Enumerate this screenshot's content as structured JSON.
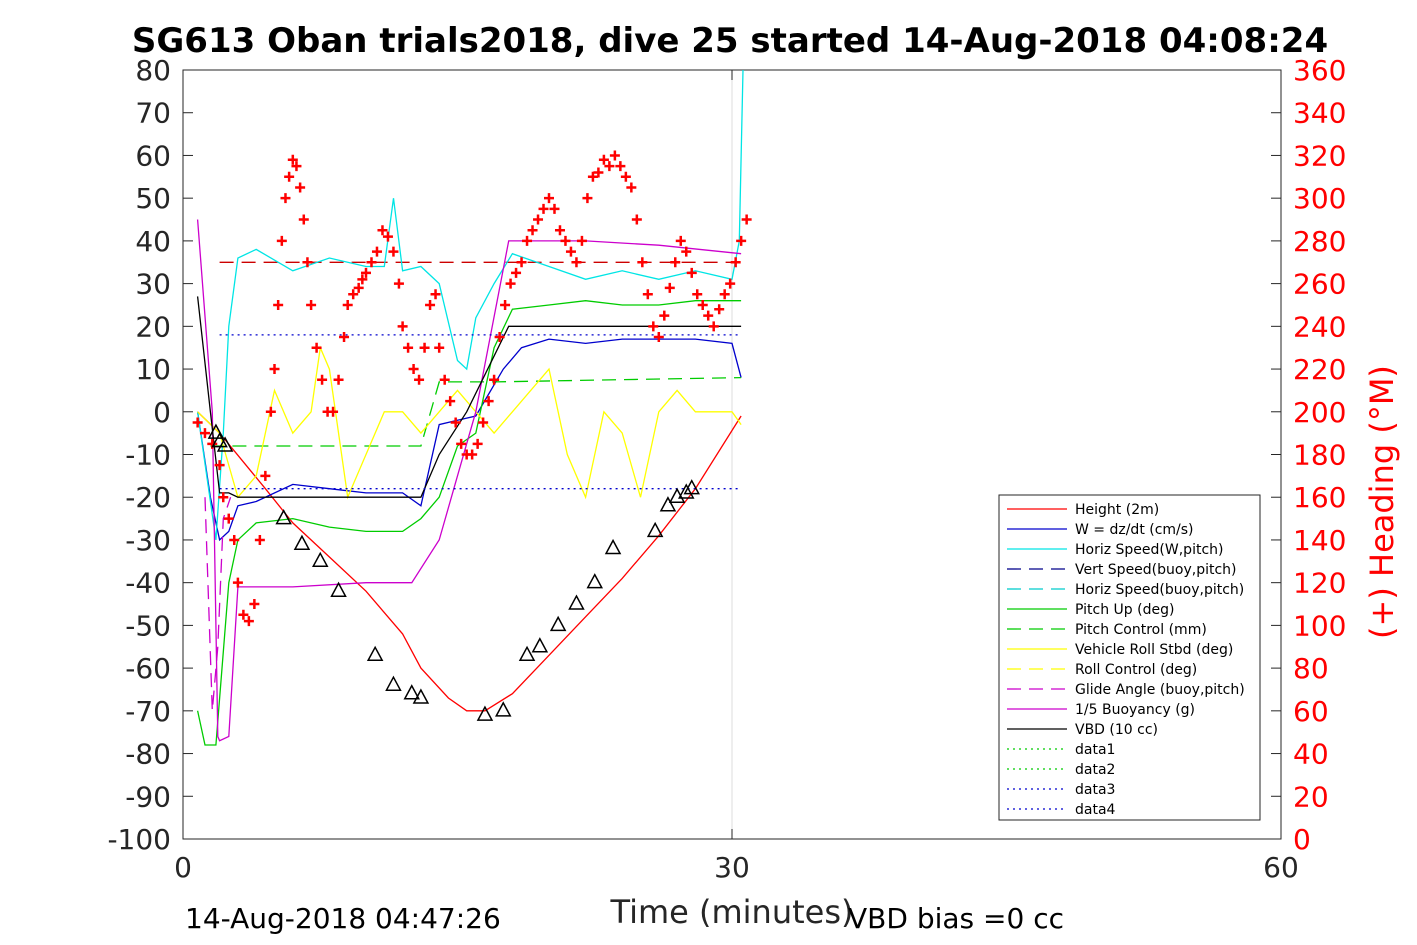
{
  "title": "SG613 Oban trials2018, dive 25 started 14-Aug-2018 04:08:24",
  "footer_left": "14-Aug-2018 04:47:26",
  "footer_right": "VBD bias =0 cc",
  "chart_data": {
    "type": "line",
    "xlabel": "Time (minutes)",
    "ylabel_right": "(+) Heading (°M)",
    "xlim": [
      0,
      60
    ],
    "ylim": [
      -100,
      80
    ],
    "ylim_right": [
      0,
      360
    ],
    "xticks": [
      "0",
      "30",
      "60"
    ],
    "yticks": [
      "80",
      "70",
      "60",
      "50",
      "40",
      "30",
      "20",
      "10",
      "0",
      "-10",
      "-20",
      "-30",
      "-40",
      "-50",
      "-60",
      "-70",
      "-80",
      "-90",
      "-100"
    ],
    "yticks_right": [
      "360",
      "340",
      "320",
      "300",
      "280",
      "260",
      "240",
      "220",
      "200",
      "180",
      "160",
      "140",
      "120",
      "100",
      "80",
      "60",
      "40",
      "20",
      "0"
    ],
    "legend_position": "lower-right",
    "series": [
      {
        "name": "Height (2m)",
        "color": "#ff0000",
        "style": "solid",
        "x": [
          0.8,
          2.0,
          4.5,
          6.0,
          8.0,
          10.0,
          12.0,
          13.0,
          14.5,
          15.5,
          16.5,
          18.0,
          20.0,
          22.0,
          24.0,
          26.0,
          28.0,
          30.5
        ],
        "y": [
          0,
          -5,
          -18,
          -26,
          -34,
          -42,
          -52,
          -60,
          -67,
          -70,
          -70,
          -66,
          -57,
          -48,
          -39,
          -29,
          -18,
          -1
        ]
      },
      {
        "name": "W = dz/dt (cm/s)",
        "color": "#0000cd",
        "style": "solid",
        "x": [
          0.8,
          1.5,
          2.0,
          2.5,
          3.0,
          4.0,
          6.0,
          8.0,
          10.0,
          12.0,
          13.0,
          14.0,
          15.0,
          16.0,
          17.5,
          18.5,
          20.0,
          22.0,
          24.0,
          26.0,
          28.0,
          30.0,
          30.5
        ],
        "y": [
          0,
          -20,
          -30,
          -28,
          -22,
          -21,
          -17,
          -18,
          -19,
          -19,
          -22,
          -3,
          -2,
          -1,
          10,
          15,
          17,
          16,
          17,
          17,
          17,
          16,
          8
        ]
      },
      {
        "name": "Horiz Speed(W,pitch)",
        "color": "#00e5e5",
        "style": "solid",
        "x": [
          0.8,
          1.8,
          2.2,
          2.5,
          3.0,
          4.0,
          6.0,
          8.0,
          10.0,
          11.0,
          11.5,
          12.0,
          13.0,
          14.0,
          15.0,
          15.5,
          16.0,
          17.0,
          18.0,
          20.0,
          22.0,
          24.0,
          26.0,
          28.0,
          30.0,
          30.4,
          30.6
        ],
        "y": [
          0,
          -30,
          -5,
          20,
          36,
          38,
          33,
          36,
          34,
          34,
          50,
          33,
          34,
          30,
          12,
          10,
          22,
          30,
          37,
          34,
          31,
          33,
          31,
          33,
          31,
          40,
          80
        ]
      },
      {
        "name": "Vert Speed(buoy,pitch)",
        "color": "#00008b",
        "style": "dashed",
        "x": [],
        "y": []
      },
      {
        "name": "Horiz Speed(buoy,pitch)",
        "color": "#00cccc",
        "style": "dashed",
        "x": [],
        "y": []
      },
      {
        "name": "Pitch Up (deg)",
        "color": "#00cc00",
        "style": "solid",
        "x": [
          0.8,
          1.2,
          1.8,
          2.5,
          3.0,
          4.0,
          6.0,
          8.0,
          10.0,
          12.0,
          13.0,
          14.0,
          15.0,
          16.0,
          17.0,
          18.0,
          20.0,
          22.0,
          24.0,
          26.0,
          28.0,
          30.5
        ],
        "y": [
          -70,
          -78,
          -78,
          -40,
          -30,
          -26,
          -25,
          -27,
          -28,
          -28,
          -25,
          -20,
          -8,
          -5,
          15,
          24,
          25,
          26,
          25,
          25,
          26,
          26
        ]
      },
      {
        "name": "Pitch Control (mm)",
        "color": "#00cc00",
        "style": "dashed",
        "x": [
          1.5,
          13.0,
          14.0,
          17.0,
          30.5
        ],
        "y": [
          -8,
          -8,
          7,
          7,
          8
        ]
      },
      {
        "name": "Vehicle Roll Stbd (deg)",
        "color": "#ffff00",
        "style": "solid",
        "x": [
          0.8,
          2.0,
          3.0,
          4.0,
          5.0,
          6.0,
          7.0,
          7.5,
          8.0,
          9.0,
          10.0,
          11.0,
          12.0,
          13.0,
          14.0,
          15.0,
          16.0,
          17.0,
          18.0,
          20.0,
          21.0,
          22.0,
          23.0,
          24.0,
          25.0,
          26.0,
          27.0,
          28.0,
          30.0,
          30.5
        ],
        "y": [
          0,
          -5,
          -20,
          -15,
          5,
          -5,
          0,
          15,
          10,
          -20,
          -10,
          0,
          0,
          -5,
          0,
          5,
          0,
          -5,
          0,
          10,
          -10,
          -20,
          0,
          -5,
          -20,
          0,
          5,
          0,
          0,
          -3
        ]
      },
      {
        "name": "Roll Control (deg)",
        "color": "#ffff00",
        "style": "dashed",
        "x": [],
        "y": []
      },
      {
        "name": "Glide Angle (buoy,pitch)",
        "color": "#cc00cc",
        "style": "dashed",
        "x": [
          1.2,
          1.6,
          1.9,
          2.2,
          2.6
        ],
        "y": [
          -20,
          -70,
          -55,
          -25,
          -20
        ]
      },
      {
        "name": "1/5 Buoyancy (g)",
        "color": "#cc00cc",
        "style": "solid",
        "x": [
          0.8,
          1.6,
          1.9,
          2.0,
          2.5,
          3.0,
          6.0,
          10.0,
          12.5,
          14.0,
          16.0,
          17.8,
          18.5,
          22.0,
          26.0,
          30.5
        ],
        "y": [
          45,
          0,
          -76,
          -77,
          -76,
          -41,
          -41,
          -40,
          -40,
          -30,
          0,
          40,
          40,
          40,
          39,
          37
        ]
      },
      {
        "name": "VBD (10 cc)",
        "color": "#000000",
        "style": "solid",
        "x": [
          0.8,
          1.5,
          2.0,
          2.5,
          3.0,
          13.0,
          14.0,
          15.5,
          17.8,
          30.5
        ],
        "y": [
          27,
          0,
          -19,
          -19,
          -20,
          -20,
          -10,
          0,
          20,
          20
        ]
      },
      {
        "name": "data1",
        "color": "#00cc00",
        "style": "dotted",
        "x": [],
        "y": []
      },
      {
        "name": "data2",
        "color": "#00cc00",
        "style": "dotted",
        "x": [],
        "y": []
      },
      {
        "name": "data3",
        "color": "#0000cd",
        "style": "dotted",
        "x": [
          2.0,
          30.5
        ],
        "y": [
          -18,
          -18
        ]
      },
      {
        "name": "data4",
        "color": "#0000cd",
        "style": "dotted",
        "x": [
          2.0,
          30.5
        ],
        "y": [
          18,
          18
        ]
      }
    ],
    "reference_lines": [
      {
        "color": "#cc0000",
        "style": "dashed",
        "x": [
          2.0,
          30.5
        ],
        "y": [
          35,
          35
        ]
      }
    ],
    "heading_points": {
      "color": "#ff0000",
      "marker": "+",
      "x": [
        0.8,
        1.2,
        1.6,
        2.0,
        2.2,
        2.5,
        2.8,
        3.0,
        3.3,
        3.6,
        3.9,
        4.2,
        4.5,
        4.8,
        5.0,
        5.2,
        5.4,
        5.6,
        5.8,
        6.0,
        6.2,
        6.4,
        6.6,
        6.8,
        7.0,
        7.3,
        7.6,
        7.9,
        8.2,
        8.5,
        8.8,
        9.0,
        9.3,
        9.6,
        9.8,
        10.0,
        10.3,
        10.6,
        10.9,
        11.2,
        11.5,
        11.8,
        12.0,
        12.3,
        12.6,
        12.9,
        13.2,
        13.5,
        13.8,
        14.0,
        14.3,
        14.6,
        14.9,
        15.2,
        15.5,
        15.8,
        16.1,
        16.4,
        16.7,
        17.0,
        17.3,
        17.6,
        17.9,
        18.2,
        18.5,
        18.8,
        19.1,
        19.4,
        19.7,
        20.0,
        20.3,
        20.6,
        20.9,
        21.2,
        21.5,
        21.8,
        22.1,
        22.4,
        22.7,
        23.0,
        23.3,
        23.6,
        23.9,
        24.2,
        24.5,
        24.8,
        25.1,
        25.4,
        25.7,
        26.0,
        26.3,
        26.6,
        26.9,
        27.2,
        27.5,
        27.8,
        28.1,
        28.4,
        28.7,
        29.0,
        29.3,
        29.6,
        29.9,
        30.2,
        30.5,
        30.8
      ],
      "y": [
        195,
        190,
        185,
        175,
        160,
        150,
        140,
        120,
        105,
        102,
        110,
        140,
        170,
        200,
        220,
        250,
        280,
        300,
        310,
        318,
        315,
        305,
        290,
        270,
        250,
        230,
        215,
        200,
        200,
        215,
        235,
        250,
        255,
        258,
        262,
        265,
        270,
        275,
        285,
        282,
        275,
        260,
        240,
        230,
        220,
        215,
        230,
        250,
        255,
        230,
        215,
        205,
        195,
        185,
        180,
        180,
        185,
        195,
        205,
        215,
        235,
        250,
        260,
        265,
        270,
        280,
        285,
        290,
        295,
        300,
        295,
        285,
        280,
        275,
        270,
        280,
        300,
        310,
        312,
        318,
        315,
        320,
        315,
        310,
        305,
        290,
        270,
        255,
        240,
        235,
        245,
        258,
        270,
        280,
        275,
        265,
        255,
        250,
        245,
        240,
        248,
        255,
        260,
        270,
        280,
        290
      ]
    },
    "triangle_markers": {
      "color": "#000000",
      "x": [
        1.8,
        2.0,
        2.3,
        5.5,
        6.5,
        7.5,
        8.5,
        10.5,
        11.5,
        12.5,
        13.0,
        16.5,
        17.5,
        18.8,
        19.5,
        20.5,
        21.5,
        22.5,
        23.5,
        25.8,
        26.5,
        27.0,
        27.5,
        27.8
      ],
      "y": [
        -5,
        -7,
        -8,
        -25,
        -31,
        -35,
        -42,
        -57,
        -64,
        -66,
        -67,
        -71,
        -70,
        -57,
        -55,
        -50,
        -45,
        -40,
        -32,
        -28,
        -22,
        -20,
        -19,
        -18
      ]
    }
  }
}
